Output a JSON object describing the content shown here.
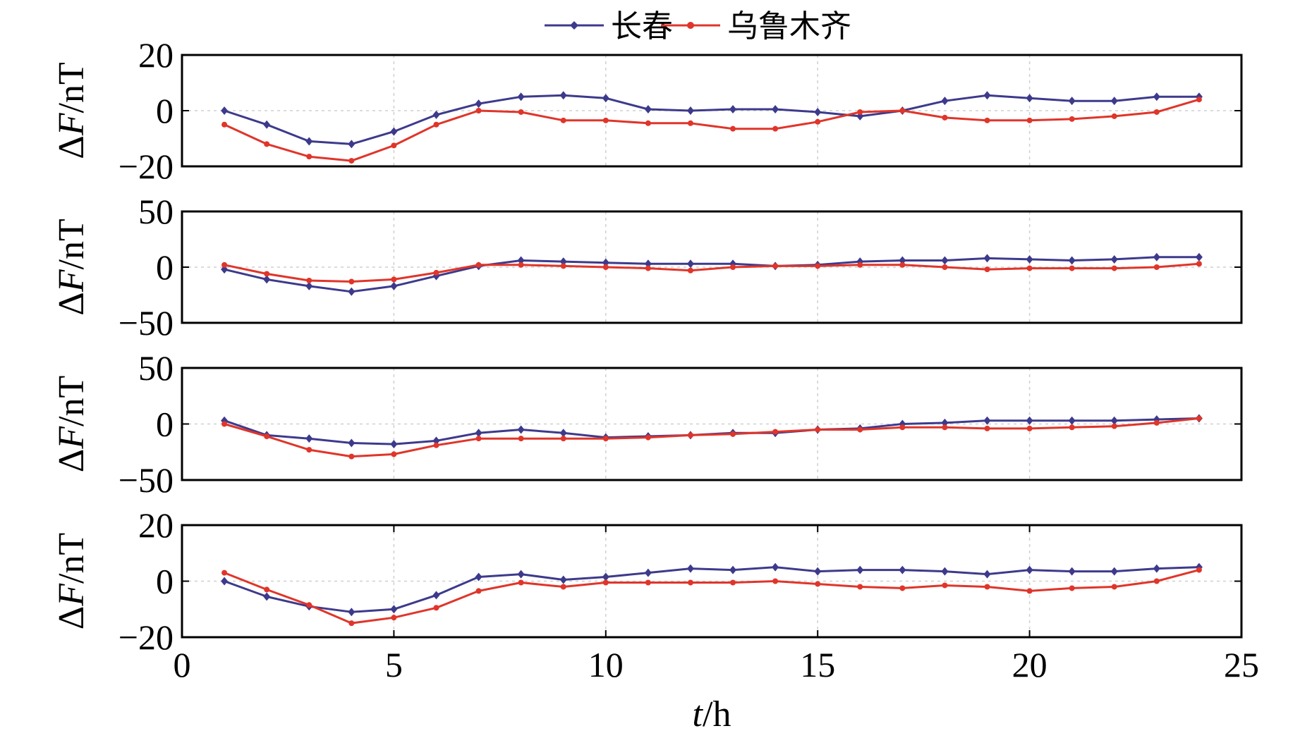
{
  "colors": {
    "changchun": "#3d3a8c",
    "urumqi": "#e0352a",
    "grid": "#cfcfcf",
    "frame": "#000000"
  },
  "legend": {
    "placement": "top-center",
    "items": [
      {
        "label": "长春",
        "color": "#3d3a8c"
      },
      {
        "label": "乌鲁木齐",
        "color": "#e0352a"
      }
    ]
  },
  "chart_data": {
    "type": "line",
    "grid": true,
    "shared_x": true,
    "xlabel": {
      "italic": "t",
      "rest": "/h"
    },
    "xlim": [
      0,
      25
    ],
    "xticks": [
      0,
      5,
      10,
      15,
      20,
      25
    ],
    "x": [
      1,
      2,
      3,
      4,
      5,
      6,
      7,
      8,
      9,
      10,
      11,
      12,
      13,
      14,
      15,
      16,
      17,
      18,
      19,
      20,
      21,
      22,
      23,
      24
    ],
    "panels": [
      {
        "ylabel": {
          "prefix": "Δ",
          "italic": "F",
          "rest": "/nT"
        },
        "ylim": [
          -20,
          20
        ],
        "yticks": [
          20,
          0,
          -20
        ],
        "series": [
          {
            "name": "长春",
            "values": [
              0,
              -5,
              -11,
              -12,
              -7.5,
              -1.5,
              2.5,
              5,
              5.5,
              4.5,
              0.5,
              0,
              0.5,
              0.5,
              -0.5,
              -2,
              0,
              3.5,
              5.5,
              4.5,
              3.5,
              3.5,
              5,
              5
            ]
          },
          {
            "name": "乌鲁木齐",
            "values": [
              -5,
              -12,
              -16.5,
              -18,
              -12.5,
              -5,
              0,
              -0.5,
              -3.5,
              -3.5,
              -4.5,
              -4.5,
              -6.5,
              -6.5,
              -4,
              -0.5,
              0,
              -2.5,
              -3.5,
              -3.5,
              -3,
              -2,
              -0.5,
              4
            ]
          }
        ]
      },
      {
        "ylabel": {
          "prefix": "Δ",
          "italic": "F",
          "rest": "/nT"
        },
        "ylim": [
          -50,
          50
        ],
        "yticks": [
          50,
          0,
          -50
        ],
        "series": [
          {
            "name": "长春",
            "values": [
              -2,
              -11,
              -17,
              -22,
              -17,
              -8,
              1,
              6,
              5,
              4,
              3,
              3,
              3,
              1,
              2,
              5,
              6,
              6,
              8,
              7,
              6,
              7,
              9,
              9
            ]
          },
          {
            "name": "乌鲁木齐",
            "values": [
              2,
              -6,
              -12,
              -13,
              -11,
              -5,
              2,
              2,
              1,
              0,
              -1,
              -3,
              0,
              1,
              1,
              2,
              2,
              0,
              -2,
              -1,
              -1,
              -1,
              0,
              3
            ]
          }
        ]
      },
      {
        "ylabel": {
          "prefix": "Δ",
          "italic": "F",
          "rest": "/nT"
        },
        "ylim": [
          -50,
          50
        ],
        "yticks": [
          50,
          0,
          -50
        ],
        "series": [
          {
            "name": "长春",
            "values": [
              3,
              -10,
              -13,
              -17,
              -18,
              -15,
              -8,
              -5,
              -8,
              -12,
              -11,
              -10,
              -8,
              -8,
              -5,
              -4,
              0,
              1,
              3,
              3,
              3,
              3,
              4,
              5
            ]
          },
          {
            "name": "乌鲁木齐",
            "values": [
              0,
              -11,
              -23,
              -29,
              -27,
              -19,
              -13,
              -13,
              -13,
              -13,
              -12,
              -10,
              -9,
              -7,
              -5,
              -5,
              -3,
              -3,
              -4,
              -4,
              -3,
              -2,
              1,
              5
            ]
          }
        ]
      },
      {
        "ylabel": {
          "prefix": "Δ",
          "italic": "F",
          "rest": "/nT"
        },
        "ylim": [
          -20,
          20
        ],
        "yticks": [
          20,
          0,
          -20
        ],
        "series": [
          {
            "name": "长春",
            "values": [
              0,
              -5.5,
              -9,
              -11,
              -10,
              -5,
              1.5,
              2.5,
              0.5,
              1.5,
              3,
              4.5,
              4,
              5,
              3.5,
              4,
              4,
              3.5,
              2.5,
              4,
              3.5,
              3.5,
              4.5,
              5
            ]
          },
          {
            "name": "乌鲁木齐",
            "values": [
              3,
              -3,
              -8.5,
              -15,
              -13,
              -9.5,
              -3.5,
              -0.5,
              -2,
              -0.5,
              -0.5,
              -0.5,
              -0.5,
              0,
              -1,
              -2,
              -2.5,
              -1.5,
              -2,
              -3.5,
              -2.5,
              -2,
              0,
              4
            ]
          }
        ]
      }
    ]
  }
}
